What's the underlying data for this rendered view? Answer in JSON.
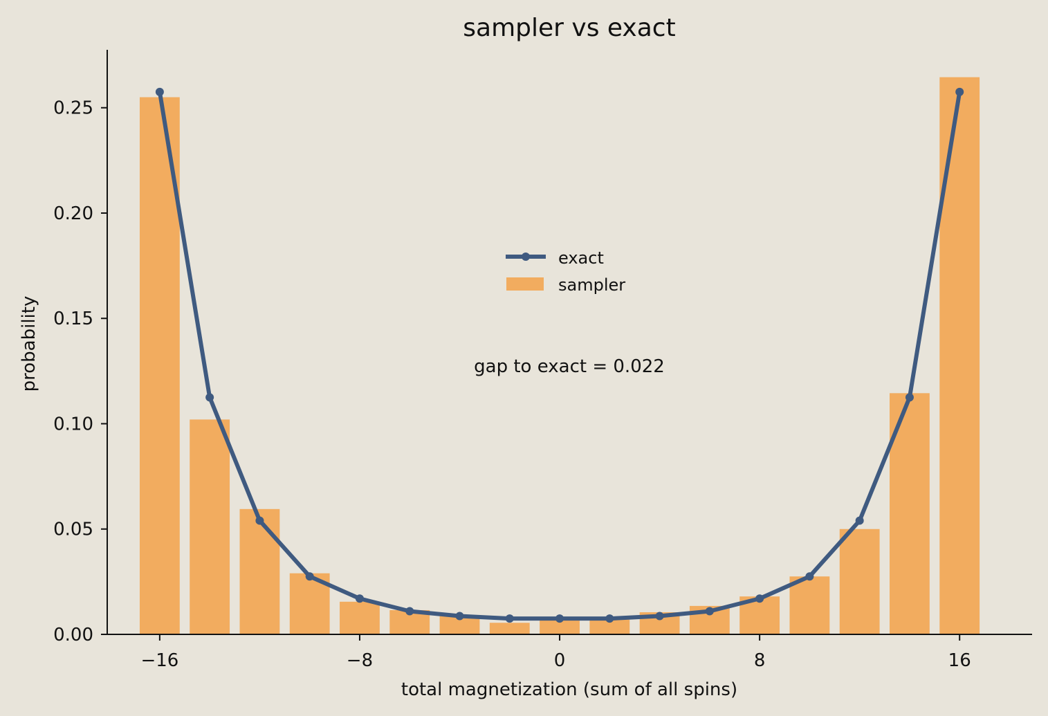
{
  "chart_data": {
    "type": "bar",
    "title": "sampler vs exact",
    "xlabel": "total magnetization  (sum of all spins)",
    "ylabel": "probability",
    "xlim": [
      -18.1,
      18.9
    ],
    "ylim": [
      0,
      0.2775
    ],
    "x_ticks": [
      -16,
      -8,
      0,
      8,
      16
    ],
    "x_tick_labels": [
      "−16",
      "−8",
      "0",
      "8",
      "16"
    ],
    "y_ticks": [
      0,
      0.05,
      0.1,
      0.15,
      0.2,
      0.25
    ],
    "y_tick_labels": [
      "0.00",
      "0.05",
      "0.10",
      "0.15",
      "0.20",
      "0.25"
    ],
    "x": [
      -16,
      -14,
      -12,
      -10,
      -8,
      -6,
      -4,
      -2,
      0,
      2,
      4,
      6,
      8,
      10,
      12,
      14,
      16
    ],
    "bar_width": 1.6,
    "series": [
      {
        "name": "exact",
        "type": "line",
        "color": "#3f5a80",
        "values": [
          0.2575,
          0.1125,
          0.054,
          0.0275,
          0.017,
          0.011,
          0.0087,
          0.0075,
          0.0075,
          0.0075,
          0.0087,
          0.011,
          0.017,
          0.0275,
          0.054,
          0.1125,
          0.2575
        ]
      },
      {
        "name": "sampler",
        "type": "bar",
        "color": "#f2ac5f",
        "values": [
          0.255,
          0.102,
          0.0595,
          0.029,
          0.0155,
          0.0115,
          0.009,
          0.0055,
          0.0075,
          0.007,
          0.0105,
          0.0135,
          0.018,
          0.0275,
          0.05,
          0.1145,
          0.2645
        ]
      }
    ],
    "legend": {
      "position": "center",
      "entries": [
        "exact",
        "sampler"
      ]
    },
    "annotation": "gap to exact = 0.022",
    "grid": false,
    "background": "#e8e4da"
  }
}
